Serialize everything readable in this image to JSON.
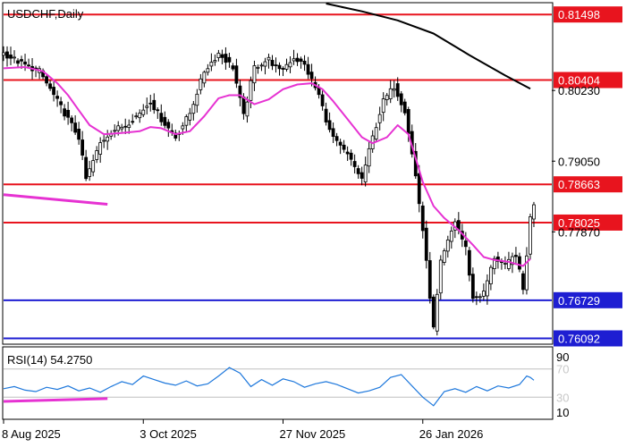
{
  "chart_data": {
    "type": "candlestick",
    "title": "USDCHF,Daily",
    "xlabel": "",
    "ylabel": "",
    "ylim": [
      0.7601,
      0.8168
    ],
    "grid": false,
    "x_ticks": [
      "8 Aug 2025",
      "3 Oct 2025",
      "27 Nov 2025",
      "26 Jan 2026"
    ],
    "y_ticks": [
      {
        "label": "0.81498",
        "value": 0.81498,
        "kind": "line-tag",
        "color": "#e8141e"
      },
      {
        "label": "0.80404",
        "value": 0.80404,
        "kind": "line-tag",
        "color": "#e8141e"
      },
      {
        "label": "0.80230",
        "value": 0.8023,
        "kind": "scale"
      },
      {
        "label": "0.79050",
        "value": 0.7905,
        "kind": "scale"
      },
      {
        "label": "0.78663",
        "value": 0.78663,
        "kind": "line-tag",
        "color": "#e8141e"
      },
      {
        "label": "0.78025",
        "value": 0.78025,
        "kind": "line-tag",
        "color": "#e8141e"
      },
      {
        "label": "0.77870",
        "value": 0.7787,
        "kind": "scale"
      },
      {
        "label": "0.76729",
        "value": 0.76729,
        "kind": "line-tag",
        "color": "#1e1ed2"
      },
      {
        "label": "0.76092",
        "value": 0.76092,
        "kind": "line-tag",
        "color": "#1e1ed2"
      }
    ],
    "levels": [
      {
        "value": 0.81498,
        "color": "#e8141e"
      },
      {
        "value": 0.80404,
        "color": "#e8141e"
      },
      {
        "value": 0.78663,
        "color": "#e8141e"
      },
      {
        "value": 0.78025,
        "color": "#e8141e"
      },
      {
        "value": 0.76729,
        "color": "#1e1ed2"
      },
      {
        "value": 0.76092,
        "color": "#1e1ed2"
      }
    ],
    "series": [
      {
        "kind": "candles",
        "color": "#000000",
        "anchors": [
          [
            0,
            0.8085
          ],
          [
            5,
            0.8068
          ],
          [
            10,
            0.8055
          ],
          [
            15,
            0.8005
          ],
          [
            18,
            0.7975
          ],
          [
            21,
            0.7945
          ],
          [
            23,
            0.7875
          ],
          [
            27,
            0.7935
          ],
          [
            30,
            0.7955
          ],
          [
            34,
            0.7965
          ],
          [
            38,
            0.7985
          ],
          [
            41,
            0.8005
          ],
          [
            44,
            0.7975
          ],
          [
            48,
            0.7945
          ],
          [
            52,
            0.7985
          ],
          [
            56,
            0.8055
          ],
          [
            60,
            0.8085
          ],
          [
            64,
            0.8062
          ],
          [
            67,
            0.798
          ],
          [
            70,
            0.8062
          ],
          [
            74,
            0.8075
          ],
          [
            77,
            0.8055
          ],
          [
            81,
            0.8078
          ],
          [
            84,
            0.8065
          ],
          [
            88,
            0.8015
          ],
          [
            91,
            0.7955
          ],
          [
            93,
            0.7935
          ],
          [
            96,
            0.7915
          ],
          [
            100,
            0.7875
          ],
          [
            103,
            0.7945
          ],
          [
            106,
            0.8005
          ],
          [
            109,
            0.803
          ],
          [
            112,
            0.799
          ],
          [
            115,
            0.788
          ],
          [
            117,
            0.779
          ],
          [
            120,
            0.7625
          ],
          [
            122,
            0.7735
          ],
          [
            126,
            0.7805
          ],
          [
            129,
            0.776
          ],
          [
            131,
            0.7675
          ],
          [
            134,
            0.7685
          ],
          [
            137,
            0.7745
          ],
          [
            140,
            0.773
          ],
          [
            143,
            0.775
          ],
          [
            145,
            0.769
          ],
          [
            146,
            0.775
          ],
          [
            147,
            0.781
          ],
          [
            148,
            0.7835
          ]
        ]
      },
      {
        "kind": "ma-short",
        "color": "#e632d2",
        "points": [
          [
            0,
            0.806
          ],
          [
            6,
            0.8062
          ],
          [
            11,
            0.8055
          ],
          [
            15,
            0.8035
          ],
          [
            18,
            0.8015
          ],
          [
            21,
            0.799
          ],
          [
            24,
            0.7965
          ],
          [
            28,
            0.795
          ],
          [
            33,
            0.7952
          ],
          [
            38,
            0.7955
          ],
          [
            41,
            0.7962
          ],
          [
            44,
            0.796
          ],
          [
            48,
            0.795
          ],
          [
            52,
            0.7955
          ],
          [
            56,
            0.798
          ],
          [
            60,
            0.801
          ],
          [
            63,
            0.8015
          ],
          [
            66,
            0.8015
          ],
          [
            70,
            0.8
          ],
          [
            74,
            0.8008
          ],
          [
            78,
            0.8025
          ],
          [
            82,
            0.8033
          ],
          [
            86,
            0.8035
          ],
          [
            89,
            0.8025
          ],
          [
            92,
            0.8005
          ],
          [
            96,
            0.7975
          ],
          [
            100,
            0.7945
          ],
          [
            103,
            0.7935
          ],
          [
            107,
            0.7945
          ],
          [
            110,
            0.7965
          ],
          [
            113,
            0.795
          ],
          [
            117,
            0.787
          ],
          [
            120,
            0.783
          ],
          [
            123,
            0.781
          ],
          [
            127,
            0.779
          ],
          [
            131,
            0.7765
          ],
          [
            134,
            0.7745
          ],
          [
            137,
            0.774
          ],
          [
            141,
            0.7737
          ],
          [
            145,
            0.773
          ],
          [
            147,
            0.7742
          ]
        ]
      },
      {
        "kind": "ma-long",
        "color": "#000000",
        "points": [
          [
            90,
            0.8168
          ],
          [
            100,
            0.8155
          ],
          [
            110,
            0.814
          ],
          [
            120,
            0.8118
          ],
          [
            130,
            0.8082
          ],
          [
            140,
            0.8048
          ],
          [
            147,
            0.8026
          ]
        ]
      },
      {
        "kind": "trendline",
        "color": "#e632d2",
        "points": [
          [
            0,
            0.7849
          ],
          [
            29,
            0.7833
          ]
        ]
      }
    ],
    "x_range": [
      0,
      153
    ],
    "indicator": {
      "name": "RSI(14)",
      "value": "54.2750",
      "label": "RSI(14) 54.2750",
      "levels": [
        70,
        30
      ],
      "level_labels": [
        "70",
        "30"
      ],
      "scale_labels": [
        "90",
        "10"
      ],
      "ylim": [
        0,
        100
      ],
      "color": "#1e78dc",
      "values": [
        [
          0,
          42
        ],
        [
          3,
          45
        ],
        [
          6,
          40
        ],
        [
          9,
          38
        ],
        [
          12,
          44
        ],
        [
          15,
          41
        ],
        [
          18,
          46
        ],
        [
          21,
          39
        ],
        [
          24,
          43
        ],
        [
          27,
          37
        ],
        [
          30,
          45
        ],
        [
          33,
          52
        ],
        [
          36,
          48
        ],
        [
          39,
          60
        ],
        [
          42,
          55
        ],
        [
          45,
          50
        ],
        [
          48,
          47
        ],
        [
          51,
          53
        ],
        [
          54,
          46
        ],
        [
          57,
          49
        ],
        [
          60,
          60
        ],
        [
          63,
          72
        ],
        [
          66,
          64
        ],
        [
          69,
          45
        ],
        [
          72,
          55
        ],
        [
          75,
          47
        ],
        [
          78,
          56
        ],
        [
          81,
          52
        ],
        [
          84,
          44
        ],
        [
          87,
          49
        ],
        [
          90,
          52
        ],
        [
          93,
          48
        ],
        [
          96,
          42
        ],
        [
          99,
          36
        ],
        [
          102,
          39
        ],
        [
          105,
          44
        ],
        [
          108,
          58
        ],
        [
          111,
          62
        ],
        [
          114,
          46
        ],
        [
          117,
          30
        ],
        [
          120,
          18
        ],
        [
          123,
          38
        ],
        [
          126,
          42
        ],
        [
          129,
          37
        ],
        [
          132,
          45
        ],
        [
          135,
          39
        ],
        [
          138,
          46
        ],
        [
          141,
          43
        ],
        [
          144,
          48
        ],
        [
          146,
          60
        ],
        [
          147,
          58
        ],
        [
          148,
          54
        ]
      ],
      "trendline": [
        [
          0,
          24
        ],
        [
          29,
          28
        ]
      ],
      "trendline_color": "#e632d2"
    }
  }
}
